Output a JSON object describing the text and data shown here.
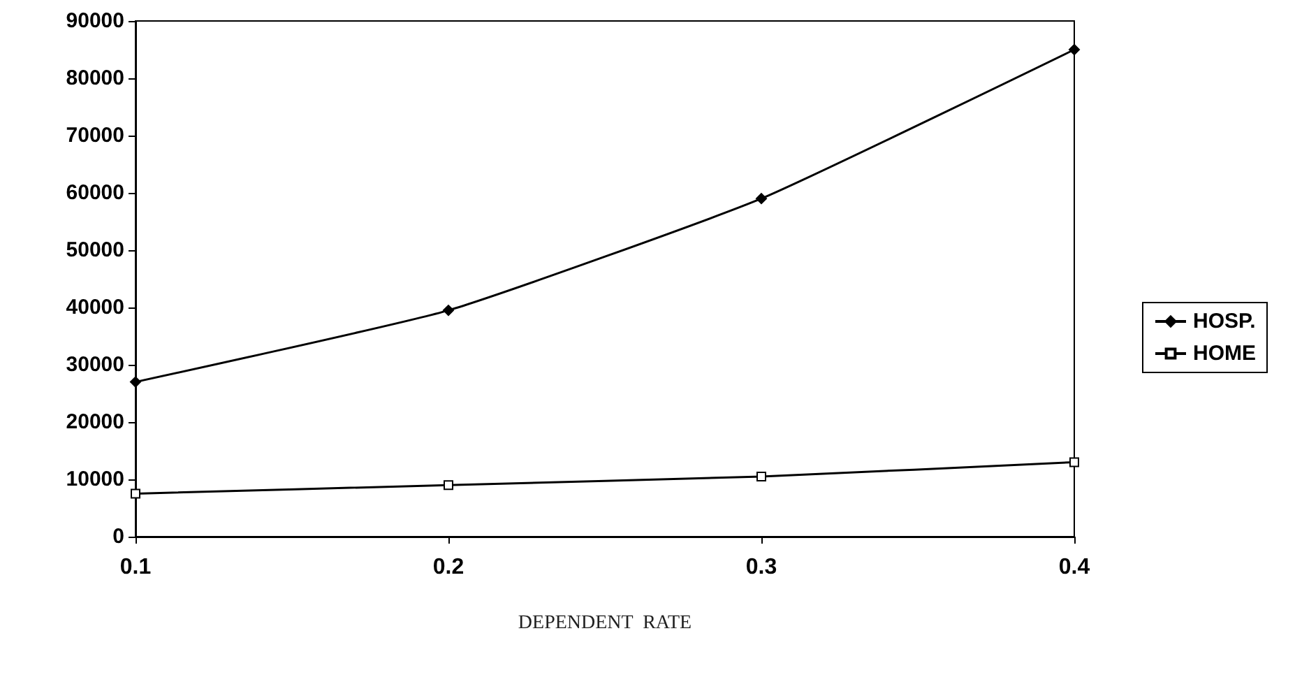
{
  "chart_data": {
    "type": "line",
    "xlabel": "DEPENDENT  RATE",
    "categories": [
      "0.1",
      "0.2",
      "0.3",
      "0.4"
    ],
    "series": [
      {
        "name": "HOSP.",
        "color": "#000000",
        "marker": "diamond",
        "values": [
          27000,
          39500,
          59000,
          85000
        ]
      },
      {
        "name": "HOME",
        "color": "#000000",
        "marker": "square",
        "values": [
          7500,
          9000,
          10500,
          13000
        ]
      }
    ],
    "ylim": [
      0,
      90000
    ],
    "yticks": [
      0,
      10000,
      20000,
      30000,
      40000,
      50000,
      60000,
      70000,
      80000,
      90000
    ],
    "grid": false,
    "legend": "right",
    "line_style": "solid"
  }
}
